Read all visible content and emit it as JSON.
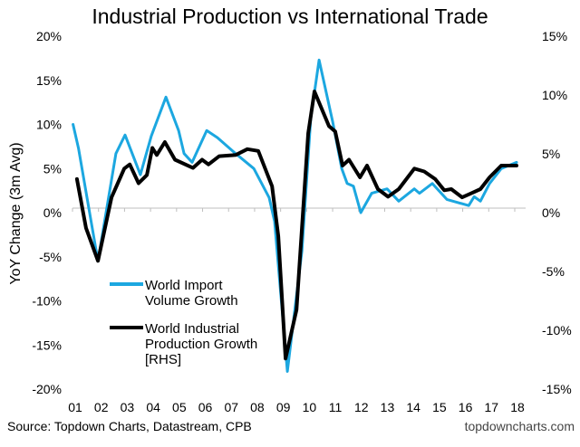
{
  "chart_data": {
    "type": "line",
    "title": "Industrial Production vs International Trade",
    "ylabel": "YoY Change (3m Avg)",
    "xlabel": "",
    "ylim": [
      -20,
      20
    ],
    "y2lim": [
      -15,
      15
    ],
    "yticks": [
      "20%",
      "15%",
      "10%",
      "5%",
      "0%",
      "-5%",
      "-10%",
      "-15%",
      "-20%"
    ],
    "yticks_values": [
      20,
      15,
      10,
      5,
      0,
      -5,
      -10,
      -15,
      -20
    ],
    "y2ticks": [
      "15%",
      "10%",
      "5%",
      "0%",
      "-5%",
      "-10%",
      "-15%"
    ],
    "y2ticks_values": [
      15,
      10,
      5,
      0,
      -5,
      -10,
      -15
    ],
    "xticks": [
      "01",
      "02",
      "03",
      "04",
      "05",
      "06",
      "07",
      "08",
      "09",
      "10",
      "11",
      "12",
      "13",
      "14",
      "15",
      "16",
      "17",
      "18"
    ],
    "xlim": [
      2001,
      2018
    ],
    "grid": false,
    "legend_placement": "bottom-left",
    "series": [
      {
        "name": "World Import Volume Growth",
        "axis": "left",
        "color": "#1ca7e0",
        "points": [
          [
            2001.02,
            10
          ],
          [
            2001.23,
            7.3
          ],
          [
            2001.98,
            -5.5
          ],
          [
            2002.67,
            6.7
          ],
          [
            2003.02,
            8.8
          ],
          [
            2003.61,
            4.3
          ],
          [
            2004.03,
            8.7
          ],
          [
            2004.59,
            13.1
          ],
          [
            2005.08,
            9.3
          ],
          [
            2005.29,
            6.7
          ],
          [
            2005.6,
            5.7
          ],
          [
            2006.16,
            9.3
          ],
          [
            2006.57,
            8.5
          ],
          [
            2007.27,
            6.7
          ],
          [
            2007.97,
            5
          ],
          [
            2008.56,
            1.7
          ],
          [
            2008.77,
            -1
          ],
          [
            2009.26,
            -18
          ],
          [
            2009.82,
            -4.3
          ],
          [
            2010.16,
            10.7
          ],
          [
            2010.48,
            17.3
          ],
          [
            2011.0,
            10.3
          ],
          [
            2011.35,
            5
          ],
          [
            2011.56,
            3.3
          ],
          [
            2011.8,
            3
          ],
          [
            2012.08,
            0
          ],
          [
            2012.5,
            2.2
          ],
          [
            2013.09,
            2.7
          ],
          [
            2013.54,
            1.3
          ],
          [
            2014.14,
            2.7
          ],
          [
            2014.34,
            2.2
          ],
          [
            2014.83,
            3.3
          ],
          [
            2015.39,
            1.5
          ],
          [
            2016.23,
            0.8
          ],
          [
            2016.44,
            1.8
          ],
          [
            2016.68,
            1.3
          ],
          [
            2017.03,
            3.3
          ],
          [
            2017.48,
            5
          ],
          [
            2018.07,
            5.7
          ]
        ]
      },
      {
        "name": "World Industrial Production Growth [RHS]",
        "axis": "right",
        "color": "#000000",
        "points": [
          [
            2001.17,
            2.85
          ],
          [
            2001.52,
            -1.3
          ],
          [
            2001.98,
            -4.1
          ],
          [
            2002.5,
            1.3
          ],
          [
            2002.99,
            3.75
          ],
          [
            2003.2,
            4.1
          ],
          [
            2003.54,
            2.5
          ],
          [
            2003.86,
            3.2
          ],
          [
            2004.07,
            5.5
          ],
          [
            2004.24,
            4.9
          ],
          [
            2004.55,
            6
          ],
          [
            2004.94,
            4.5
          ],
          [
            2005.63,
            3.8
          ],
          [
            2005.98,
            4.5
          ],
          [
            2006.23,
            4.1
          ],
          [
            2006.64,
            4.8
          ],
          [
            2007.27,
            4.9
          ],
          [
            2007.72,
            5.4
          ],
          [
            2008.14,
            5.25
          ],
          [
            2008.67,
            2.25
          ],
          [
            2008.91,
            -2
          ],
          [
            2009.19,
            -12.4
          ],
          [
            2009.61,
            -8.25
          ],
          [
            2010.06,
            6.75
          ],
          [
            2010.3,
            10.3
          ],
          [
            2010.86,
            7.35
          ],
          [
            2011.1,
            6.9
          ],
          [
            2011.38,
            4
          ],
          [
            2011.63,
            4.5
          ],
          [
            2012.05,
            3
          ],
          [
            2012.32,
            4
          ],
          [
            2012.74,
            2
          ],
          [
            2013.13,
            1.35
          ],
          [
            2013.54,
            2
          ],
          [
            2014.14,
            3.75
          ],
          [
            2014.52,
            3.5
          ],
          [
            2014.94,
            2.85
          ],
          [
            2015.29,
            1.9
          ],
          [
            2015.56,
            2
          ],
          [
            2015.98,
            1.3
          ],
          [
            2016.33,
            1.65
          ],
          [
            2016.68,
            2
          ],
          [
            2017.03,
            3
          ],
          [
            2017.48,
            4
          ],
          [
            2018.07,
            4
          ]
        ]
      }
    ],
    "legend": [
      "World Import",
      "Volume Growth",
      "World Industrial",
      "Production Growth",
      "[RHS]"
    ],
    "source": "Source: Topdown Charts, Datastream, CPB",
    "watermark": "topdowncharts.com"
  }
}
